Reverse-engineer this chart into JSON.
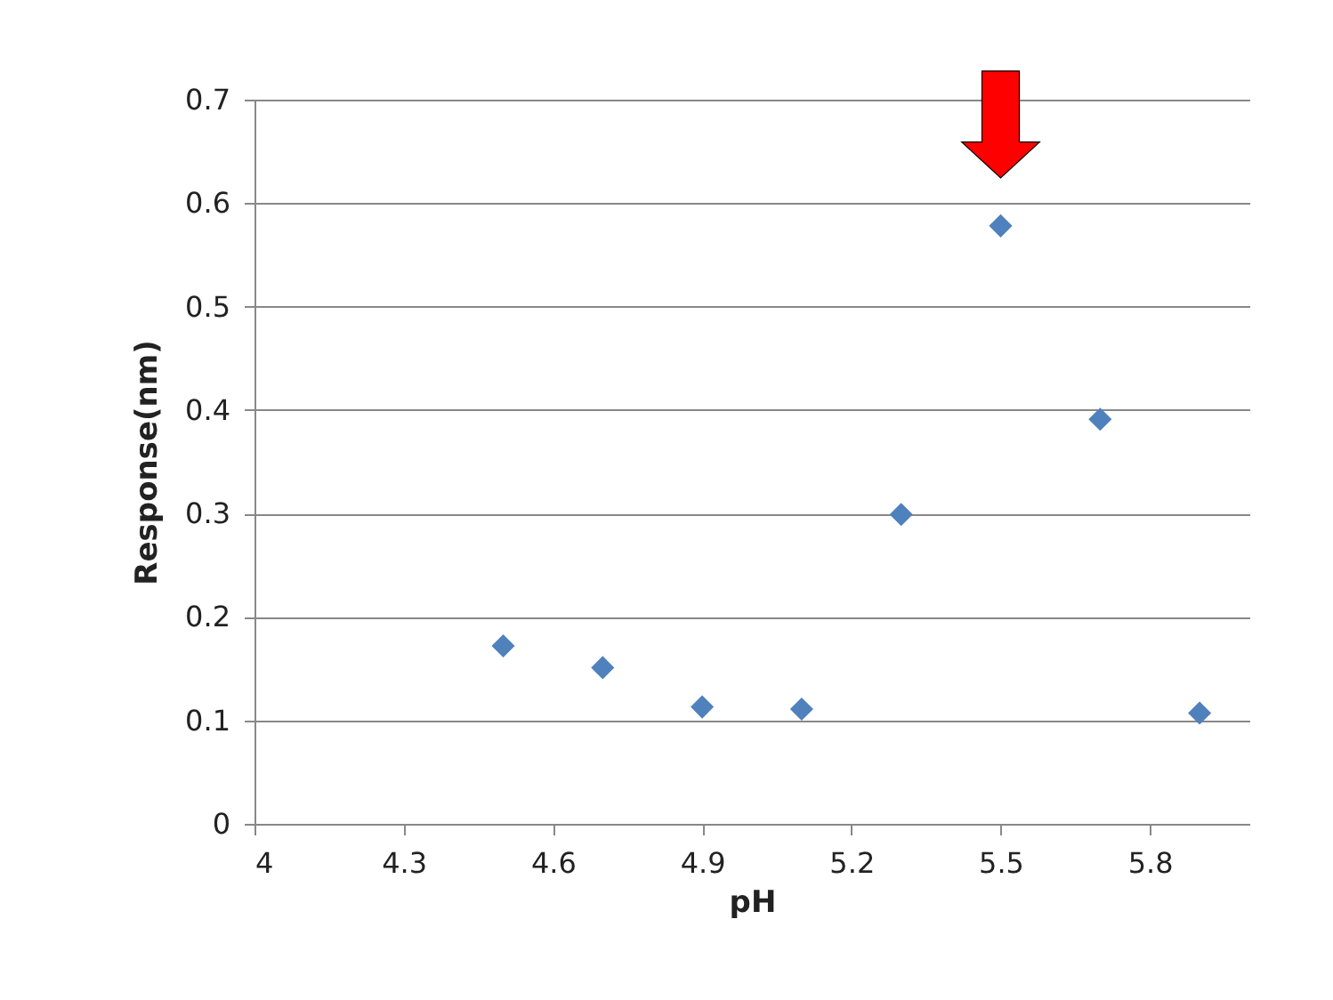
{
  "chart_data": {
    "type": "scatter",
    "xlabel": "pH",
    "ylabel": "Response(nm)",
    "x": [
      4.5,
      4.7,
      4.9,
      5.1,
      5.3,
      5.5,
      5.7,
      5.9
    ],
    "series": [
      {
        "color": "#4f81bd",
        "values": [
          0.172,
          0.151,
          0.113,
          0.111,
          0.299,
          0.578,
          0.391,
          0.107
        ]
      }
    ],
    "xlim": [
      4,
      6
    ],
    "xticks": [
      4,
      4.3,
      4.6,
      4.9,
      5.2,
      5.5,
      5.8
    ],
    "ylim": [
      0,
      0.7
    ],
    "yticks": [
      0,
      0.1,
      0.2,
      0.3,
      0.4,
      0.5,
      0.6,
      0.7
    ],
    "grid": "y",
    "marker": "diamond"
  }
}
